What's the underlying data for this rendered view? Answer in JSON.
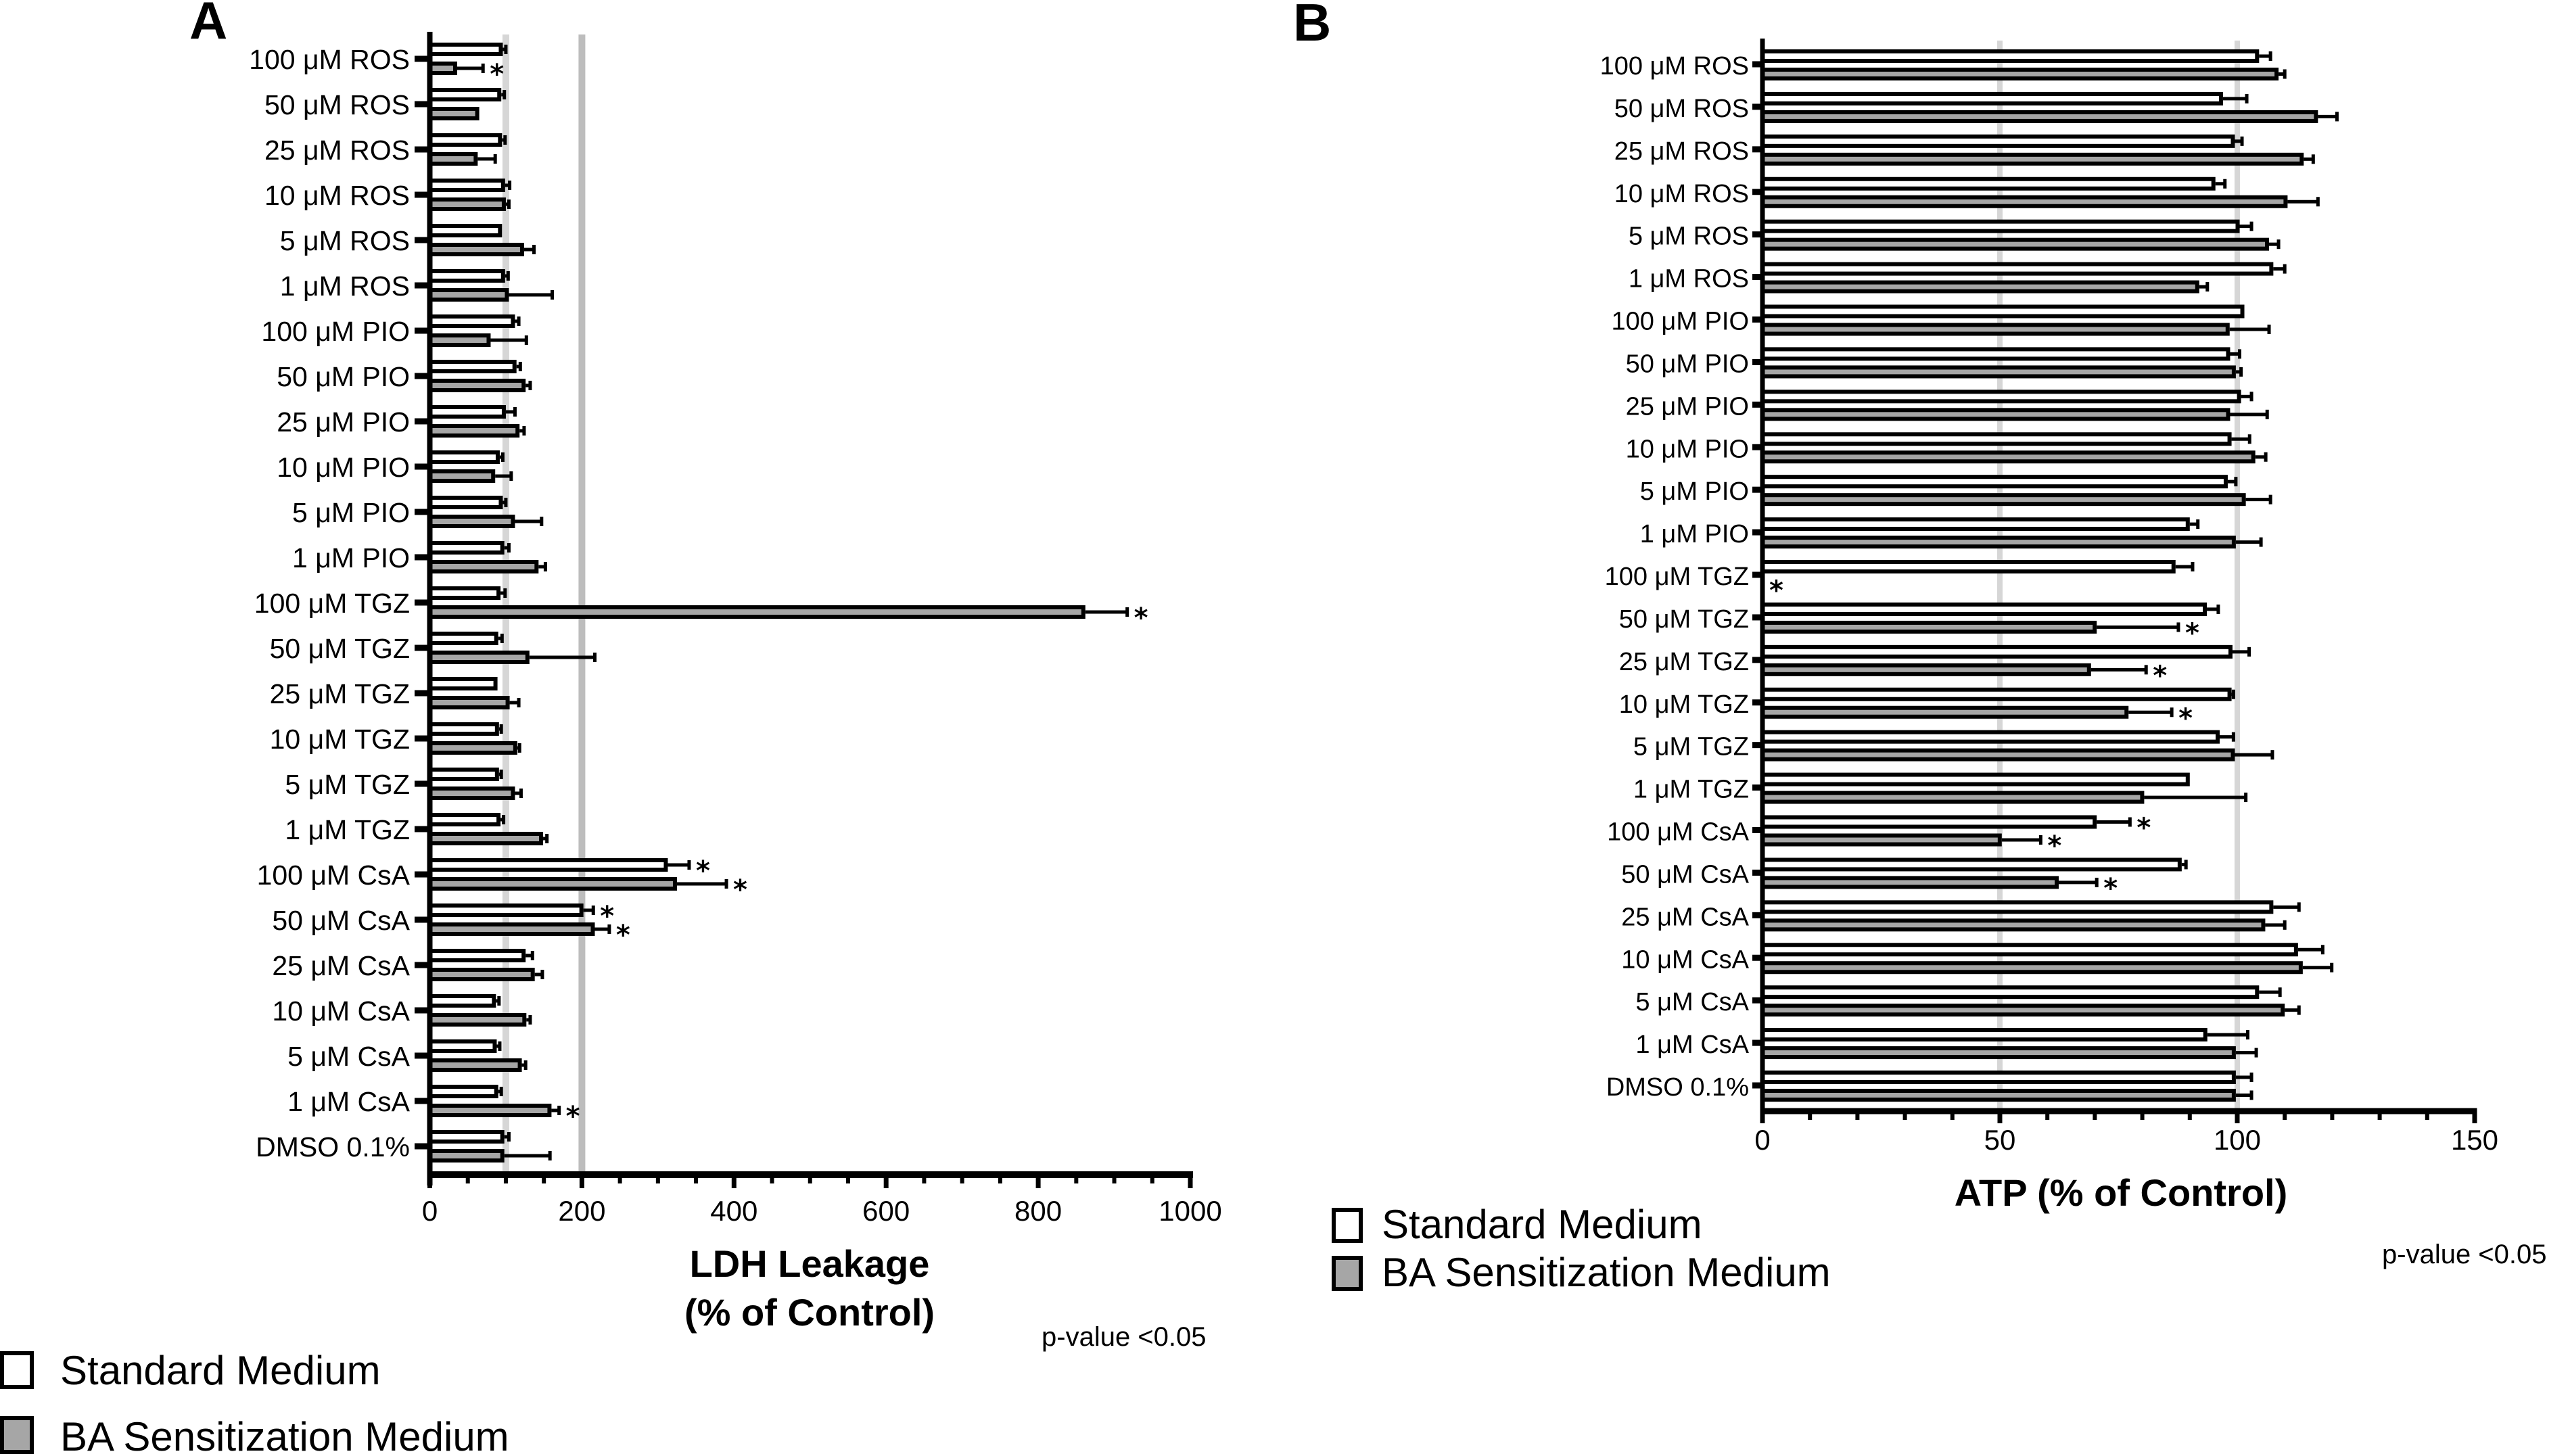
{
  "legend": {
    "standard": "Standard Medium",
    "ba": "BA Sensitization Medium"
  },
  "colors": {
    "standard_fill": "#ffffff",
    "ba_fill": "#a6a6a6",
    "stroke": "#000000",
    "ref_line_light": "#d6d6d6",
    "ref_line_dark": "#bdbdbd"
  },
  "footnote": "p-value <0.05",
  "chart_data": [
    {
      "panel": "A",
      "type": "bar",
      "orientation": "horizontal",
      "xlabel_line1": "LDH Leakage",
      "xlabel_line2": "(% of Control)",
      "xlim": [
        0,
        1000
      ],
      "xticks": [
        0,
        200,
        400,
        600,
        800,
        1000
      ],
      "xtick_labels": [
        "0",
        "200",
        "400",
        "600",
        "800",
        "1000"
      ],
      "minor_tick_step": 50,
      "reference_lines": [
        100,
        200
      ],
      "categories": [
        "100 μM ROS",
        "50 μM ROS",
        "25 μM ROS",
        "10 μM ROS",
        "5 μM ROS",
        "1 μM ROS",
        "100 μM PIO",
        "50 μM PIO",
        "25 μM PIO",
        "10 μM PIO",
        "5 μM PIO",
        "1 μM PIO",
        "100 μM TGZ",
        "50 μM TGZ",
        "25 μM TGZ",
        "10 μM TGZ",
        "5 μM TGZ",
        "1 μM TGZ",
        "100 μM CsA",
        "50 μM CsA",
        "25 μM CsA",
        "10 μM CsA",
        "5 μM CsA",
        "1 μM CsA",
        "DMSO 0.1%"
      ],
      "series": [
        {
          "name": "Standard Medium",
          "values": [
            96,
            94,
            95,
            99,
            95,
            99,
            112,
            114,
            100,
            92,
            96,
            98,
            93,
            90,
            89,
            91,
            91,
            93,
            313,
            202,
            126,
            87,
            88,
            90,
            98
          ],
          "errors": [
            4,
            4,
            4,
            6,
            0,
            4,
            5,
            5,
            12,
            4,
            4,
            6,
            6,
            5,
            0,
            3,
            3,
            4,
            28,
            13,
            9,
            4,
            4,
            4,
            6
          ],
          "significant": [
            false,
            false,
            false,
            false,
            false,
            false,
            false,
            false,
            false,
            false,
            false,
            false,
            false,
            false,
            false,
            false,
            false,
            false,
            true,
            true,
            false,
            false,
            false,
            false,
            false
          ]
        },
        {
          "name": "BA Sensitization Medium",
          "values": [
            36,
            65,
            63,
            100,
            124,
            104,
            80,
            126,
            118,
            86,
            112,
            143,
            862,
            131,
            105,
            115,
            112,
            149,
            325,
            217,
            138,
            127,
            121,
            160,
            98
          ],
          "errors": [
            34,
            0,
            23,
            4,
            13,
            57,
            47,
            6,
            6,
            21,
            35,
            9,
            55,
            86,
            12,
            3,
            8,
            5,
            65,
            19,
            10,
            5,
            5,
            10,
            60
          ],
          "significant": [
            true,
            false,
            false,
            false,
            false,
            false,
            false,
            false,
            false,
            false,
            false,
            false,
            true,
            false,
            false,
            false,
            false,
            false,
            true,
            true,
            false,
            false,
            false,
            true,
            false
          ]
        }
      ]
    },
    {
      "panel": "B",
      "type": "bar",
      "orientation": "horizontal",
      "xlabel": "ATP (% of Control)",
      "xlim": [
        0,
        150
      ],
      "xticks": [
        0,
        50,
        100,
        150
      ],
      "xtick_labels": [
        "0",
        "50",
        "100",
        "150"
      ],
      "minor_tick_step": 10,
      "reference_lines": [
        50,
        100
      ],
      "categories": [
        "100 μM ROS",
        "50 μM ROS",
        "25 μM ROS",
        "10 μM ROS",
        "5 μM ROS",
        "1 μM ROS",
        "100 μM PIO",
        "50 μM PIO",
        "25 μM PIO",
        "10 μM PIO",
        "5 μM PIO",
        "1 μM PIO",
        "100 μM TGZ",
        "50 μM TGZ",
        "25 μM TGZ",
        "10 μM TGZ",
        "5 μM TGZ",
        "1 μM TGZ",
        "100 μM CsA",
        "50 μM CsA",
        "25 μM CsA",
        "10 μM CsA",
        "5 μM CsA",
        "1 μM CsA",
        "DMSO 0.1%"
      ],
      "series": [
        {
          "name": "Standard Medium",
          "values": [
            104.6,
            97,
            99.5,
            95.4,
            100.5,
            107.6,
            101.5,
            98.5,
            100.8,
            98.8,
            98,
            90,
            87,
            93.6,
            99,
            98.8,
            96.3,
            90,
            70.4,
            88.3,
            107.6,
            112.8,
            104.6,
            93.7,
            99.7
          ],
          "errors": [
            2.4,
            5,
            1.5,
            2,
            2.5,
            2.4,
            0,
            2,
            2.2,
            3.8,
            1.7,
            1.7,
            3.6,
            2.4,
            3.5,
            0.4,
            2.9,
            0,
            7,
            0.9,
            5.4,
            5.2,
            4.4,
            8.5,
            3.3
          ],
          "significant": [
            false,
            false,
            false,
            false,
            false,
            false,
            false,
            false,
            false,
            false,
            false,
            false,
            false,
            false,
            false,
            false,
            false,
            false,
            true,
            false,
            false,
            false,
            false,
            false,
            false
          ]
        },
        {
          "name": "BA Sensitization Medium",
          "values": [
            108.7,
            117,
            114,
            110.6,
            106.7,
            92,
            98.4,
            99.7,
            98.5,
            103.8,
            101.8,
            99.7,
            0,
            70.4,
            69.2,
            77.1,
            99.5,
            80.4,
            50.4,
            62.4,
            105.9,
            113.8,
            110,
            99.7,
            99.7
          ],
          "errors": [
            1.3,
            4,
            2,
            6.4,
            2,
            1.7,
            8.3,
            1.1,
            7.8,
            2.2,
            5.2,
            5.3,
            0,
            17.2,
            11.6,
            9.1,
            7.9,
            21.4,
            8.2,
            8,
            4.1,
            6.1,
            3,
            4.3,
            3.3
          ],
          "significant": [
            false,
            false,
            false,
            false,
            false,
            false,
            false,
            false,
            false,
            false,
            false,
            false,
            true,
            true,
            true,
            true,
            false,
            false,
            true,
            true,
            false,
            false,
            false,
            false,
            false
          ]
        }
      ]
    }
  ]
}
